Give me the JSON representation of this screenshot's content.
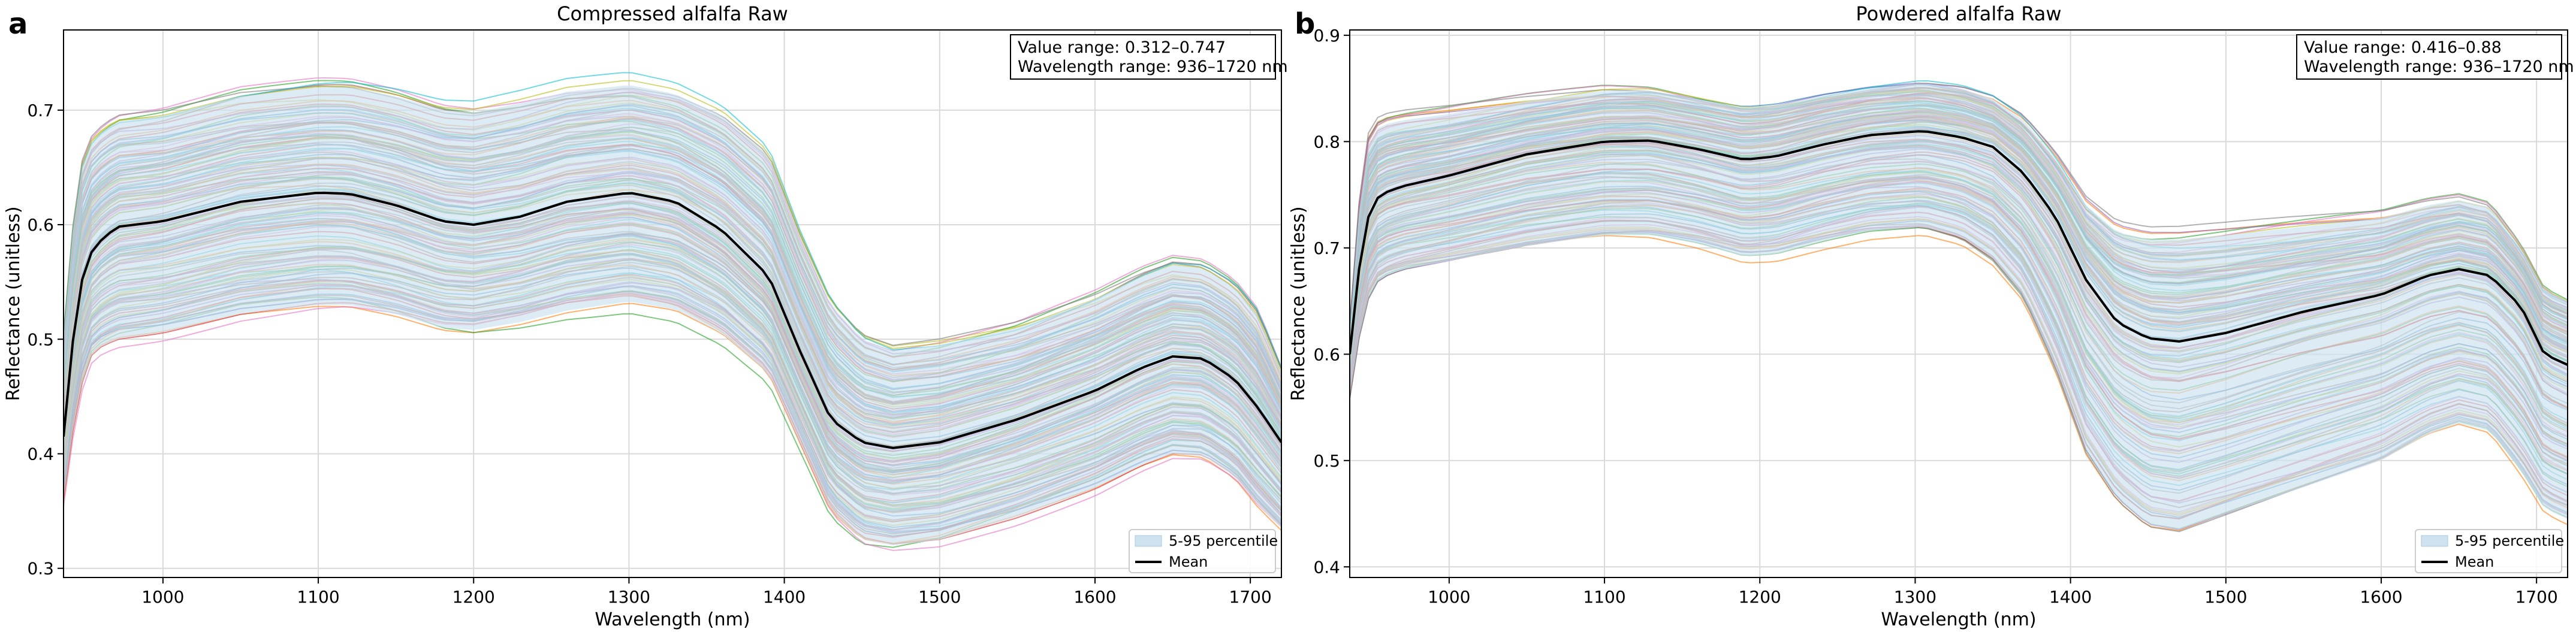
{
  "chart_data": [
    {
      "panel_label": "a",
      "type": "line",
      "title": "Compressed alfalfa Raw",
      "xlabel": "Wavelength (nm)",
      "ylabel": "Reflectance (unitless)",
      "xlim": [
        936,
        1720
      ],
      "ylim": [
        0.292,
        0.77
      ],
      "xticks": [
        "1000",
        "1100",
        "1200",
        "1300",
        "1400",
        "1500",
        "1600",
        "1700"
      ],
      "yticks": [
        "0.3",
        "0.4",
        "0.5",
        "0.6",
        "0.7"
      ],
      "grid": true,
      "info_lines": [
        "Value range: 0.312–0.747",
        "Wavelength range: 936–1720 nm"
      ],
      "legend": {
        "position": "lower-right",
        "band_label": "5-95 percentile",
        "mean_label": "Mean"
      },
      "series_count": 150,
      "value_range": [
        0.312,
        0.747
      ],
      "mean_curve": {
        "x": [
          936,
          945,
          955,
          970,
          1000,
          1050,
          1100,
          1120,
          1150,
          1180,
          1200,
          1230,
          1260,
          1300,
          1330,
          1360,
          1390,
          1410,
          1430,
          1450,
          1470,
          1500,
          1550,
          1600,
          1630,
          1650,
          1670,
          1690,
          1705,
          1720
        ],
        "y": [
          0.415,
          0.54,
          0.58,
          0.598,
          0.603,
          0.62,
          0.628,
          0.627,
          0.617,
          0.603,
          0.6,
          0.607,
          0.62,
          0.628,
          0.62,
          0.595,
          0.555,
          0.49,
          0.43,
          0.41,
          0.405,
          0.41,
          0.43,
          0.455,
          0.475,
          0.485,
          0.483,
          0.465,
          0.44,
          0.41
        ]
      },
      "p95_curve": {
        "x": [
          936,
          945,
          955,
          970,
          1000,
          1050,
          1100,
          1120,
          1150,
          1180,
          1200,
          1230,
          1260,
          1300,
          1330,
          1360,
          1390,
          1410,
          1430,
          1450,
          1470,
          1500,
          1550,
          1600,
          1630,
          1650,
          1670,
          1690,
          1705,
          1720
        ],
        "y": [
          0.5,
          0.64,
          0.675,
          0.69,
          0.695,
          0.712,
          0.72,
          0.72,
          0.712,
          0.7,
          0.698,
          0.706,
          0.716,
          0.722,
          0.714,
          0.695,
          0.66,
          0.59,
          0.53,
          0.5,
          0.49,
          0.495,
          0.51,
          0.535,
          0.555,
          0.565,
          0.562,
          0.545,
          0.52,
          0.47
        ]
      },
      "p05_curve": {
        "x": [
          936,
          945,
          955,
          970,
          1000,
          1050,
          1100,
          1120,
          1150,
          1180,
          1200,
          1230,
          1260,
          1300,
          1330,
          1360,
          1390,
          1410,
          1430,
          1450,
          1470,
          1500,
          1550,
          1600,
          1630,
          1650,
          1670,
          1690,
          1705,
          1720
        ],
        "y": [
          0.36,
          0.45,
          0.49,
          0.5,
          0.506,
          0.522,
          0.53,
          0.53,
          0.522,
          0.51,
          0.508,
          0.515,
          0.525,
          0.533,
          0.526,
          0.505,
          0.47,
          0.41,
          0.35,
          0.325,
          0.32,
          0.325,
          0.345,
          0.37,
          0.39,
          0.4,
          0.398,
          0.38,
          0.355,
          0.335
        ]
      },
      "colors": {
        "band": "#cfe2f0",
        "mean": "#000000"
      }
    },
    {
      "panel_label": "b",
      "type": "line",
      "title": "Powdered alfalfa Raw",
      "xlabel": "Wavelength (nm)",
      "ylabel": "Reflectance (unitless)",
      "xlim": [
        936,
        1720
      ],
      "ylim": [
        0.39,
        0.905
      ],
      "xticks": [
        "1000",
        "1100",
        "1200",
        "1300",
        "1400",
        "1500",
        "1600",
        "1700"
      ],
      "yticks": [
        "0.4",
        "0.5",
        "0.6",
        "0.7",
        "0.8",
        "0.9"
      ],
      "grid": true,
      "info_lines": [
        "Value range: 0.416–0.88",
        "Wavelength range: 936–1720 nm"
      ],
      "legend": {
        "position": "lower-right",
        "band_label": "5-95 percentile",
        "mean_label": "Mean"
      },
      "series_count": 150,
      "value_range": [
        0.416,
        0.88
      ],
      "mean_curve": {
        "x": [
          936,
          945,
          955,
          970,
          1000,
          1050,
          1100,
          1130,
          1160,
          1190,
          1210,
          1240,
          1270,
          1305,
          1330,
          1350,
          1370,
          1390,
          1410,
          1430,
          1450,
          1470,
          1500,
          1550,
          1600,
          1630,
          1650,
          1670,
          1690,
          1705,
          1720
        ],
        "y": [
          0.6,
          0.72,
          0.75,
          0.758,
          0.768,
          0.788,
          0.8,
          0.801,
          0.793,
          0.783,
          0.786,
          0.797,
          0.806,
          0.81,
          0.804,
          0.795,
          0.77,
          0.73,
          0.67,
          0.63,
          0.615,
          0.612,
          0.62,
          0.64,
          0.656,
          0.674,
          0.68,
          0.674,
          0.645,
          0.6,
          0.59
        ]
      },
      "p95_curve": {
        "x": [
          936,
          945,
          955,
          970,
          1000,
          1050,
          1100,
          1130,
          1160,
          1190,
          1210,
          1240,
          1270,
          1305,
          1330,
          1350,
          1370,
          1390,
          1410,
          1430,
          1450,
          1470,
          1500,
          1550,
          1600,
          1630,
          1650,
          1670,
          1690,
          1705,
          1720
        ],
        "y": [
          0.62,
          0.79,
          0.815,
          0.82,
          0.826,
          0.838,
          0.848,
          0.848,
          0.84,
          0.832,
          0.834,
          0.843,
          0.85,
          0.855,
          0.85,
          0.84,
          0.82,
          0.785,
          0.74,
          0.715,
          0.708,
          0.708,
          0.712,
          0.72,
          0.728,
          0.74,
          0.745,
          0.738,
          0.7,
          0.66,
          0.65
        ]
      },
      "p05_curve": {
        "x": [
          936,
          945,
          955,
          970,
          1000,
          1050,
          1100,
          1130,
          1160,
          1190,
          1210,
          1240,
          1270,
          1305,
          1330,
          1350,
          1370,
          1390,
          1410,
          1430,
          1450,
          1470,
          1500,
          1550,
          1600,
          1630,
          1650,
          1670,
          1690,
          1705,
          1720
        ],
        "y": [
          0.56,
          0.645,
          0.672,
          0.68,
          0.688,
          0.702,
          0.712,
          0.712,
          0.704,
          0.692,
          0.694,
          0.706,
          0.716,
          0.72,
          0.71,
          0.69,
          0.655,
          0.59,
          0.51,
          0.465,
          0.44,
          0.435,
          0.45,
          0.475,
          0.5,
          0.525,
          0.535,
          0.528,
          0.49,
          0.455,
          0.445
        ]
      },
      "colors": {
        "band": "#cfe2f0",
        "mean": "#000000"
      }
    }
  ],
  "palette": [
    "#1f77b4",
    "#ff7f0e",
    "#2ca02c",
    "#d62728",
    "#9467bd",
    "#8c564b",
    "#e377c2",
    "#7f7f7f",
    "#bcbd22",
    "#17becf"
  ]
}
